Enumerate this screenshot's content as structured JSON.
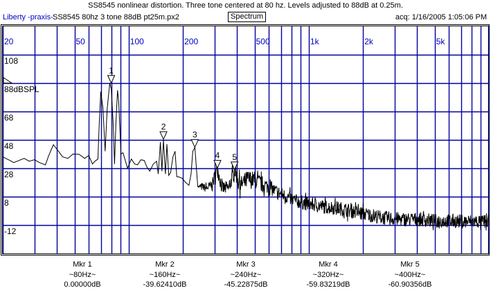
{
  "header": {
    "title": "SS8545 nonlinear distortion. Three tone centered at 80 hz. Levels adjusted to 88dB at 0.25m.",
    "brand": "Liberty -praxis-",
    "file": "SS8545 80hz 3 tone 88dB pt25m.px2",
    "mode": "Spectrum",
    "acq": "acq: 1/16/2005 1:05:06 PM"
  },
  "colors": {
    "grid": "#00009c",
    "trace": "#000000",
    "axis_text": "#0000c0"
  },
  "chart_data": {
    "type": "line",
    "title": "Spectrum",
    "xscale": "log",
    "xlim": [
      20,
      10000
    ],
    "ylim": [
      -32,
      128
    ],
    "x_tick_labels": [
      {
        "v": 20,
        "t": "20"
      },
      {
        "v": 50,
        "t": "50"
      },
      {
        "v": 100,
        "t": "100"
      },
      {
        "v": 200,
        "t": "200"
      },
      {
        "v": 500,
        "t": "500"
      },
      {
        "v": 1000,
        "t": "1k"
      },
      {
        "v": 2000,
        "t": "2k"
      },
      {
        "v": 5000,
        "t": "5k"
      }
    ],
    "y_tick_labels": [
      {
        "v": 108,
        "t": "108"
      },
      {
        "v": 88,
        "t": "88dBSPL"
      },
      {
        "v": 68,
        "t": "68"
      },
      {
        "v": 48,
        "t": "48"
      },
      {
        "v": 28,
        "t": "28"
      },
      {
        "v": 8,
        "t": "8"
      },
      {
        "v": -12,
        "t": "-12"
      }
    ],
    "reference_level_db": 88,
    "grid": true,
    "series": [
      {
        "name": "SPL",
        "points_f_db_spread": [
          [
            20,
            36,
            0
          ],
          [
            21.9,
            33.5,
            0
          ],
          [
            23,
            32,
            0
          ],
          [
            26.3,
            35,
            0
          ],
          [
            28,
            33,
            0
          ],
          [
            30,
            34,
            0
          ],
          [
            32,
            32,
            0
          ],
          [
            34.5,
            30.4,
            0
          ],
          [
            36,
            37,
            0
          ],
          [
            38.2,
            44.6,
            0
          ],
          [
            40.8,
            40,
            0
          ],
          [
            43,
            36,
            0
          ],
          [
            46,
            35,
            0
          ],
          [
            49,
            38,
            0
          ],
          [
            53,
            37.8,
            0
          ],
          [
            57,
            35,
            0
          ],
          [
            60,
            37,
            0
          ],
          [
            63,
            31,
            0
          ],
          [
            65,
            33,
            0
          ],
          [
            67.5,
            34.5,
            0
          ],
          [
            68.5,
            57,
            0
          ],
          [
            70,
            82,
            0
          ],
          [
            72,
            70,
            0
          ],
          [
            74,
            40,
            0
          ],
          [
            76,
            70,
            0
          ],
          [
            78.5,
            88,
            0
          ],
          [
            80,
            84,
            0
          ],
          [
            82,
            60,
            0
          ],
          [
            83.5,
            31,
            0
          ],
          [
            85,
            60,
            0
          ],
          [
            86.7,
            83,
            0
          ],
          [
            88,
            75,
            0
          ],
          [
            90.6,
            38,
            0
          ],
          [
            93,
            39,
            0
          ],
          [
            95,
            35,
            0
          ],
          [
            98.6,
            28,
            0
          ],
          [
            103.5,
            34.5,
            0
          ],
          [
            108,
            31,
            0
          ],
          [
            112,
            30.5,
            0
          ],
          [
            117,
            34,
            0
          ],
          [
            122,
            33.5,
            0
          ],
          [
            126,
            29,
            0
          ],
          [
            131,
            26,
            0
          ],
          [
            137,
            31,
            0
          ],
          [
            143,
            33,
            0
          ],
          [
            146,
            24,
            0
          ],
          [
            150,
            46.5,
            0
          ],
          [
            153,
            26,
            0
          ],
          [
            156,
            48,
            0
          ],
          [
            160,
            24,
            0
          ],
          [
            163,
            45,
            0
          ],
          [
            167,
            23,
            0
          ],
          [
            171,
            25,
            0
          ],
          [
            176,
            36,
            0
          ],
          [
            181,
            40,
            0
          ],
          [
            185,
            22,
            0
          ],
          [
            189,
            22,
            0
          ],
          [
            198,
            21,
            0
          ],
          [
            207,
            18,
            0
          ],
          [
            216,
            16,
            0
          ],
          [
            222,
            24,
            0
          ],
          [
            227,
            40,
            0
          ],
          [
            233,
            42.7,
            0
          ],
          [
            237,
            30,
            0
          ],
          [
            242,
            15,
            0
          ],
          [
            255,
            15,
            3
          ],
          [
            270,
            14,
            3
          ],
          [
            290,
            16,
            4
          ],
          [
            311,
            28,
            6
          ],
          [
            330,
            14,
            5
          ],
          [
            360,
            14,
            5
          ],
          [
            387,
            27,
            6
          ],
          [
            416,
            16,
            6
          ],
          [
            458,
            20,
            7
          ],
          [
            500,
            20,
            6
          ],
          [
            545,
            17,
            6
          ],
          [
            600,
            15,
            5
          ],
          [
            650,
            12,
            5
          ],
          [
            750,
            8,
            5
          ],
          [
            845,
            5,
            5
          ],
          [
            1000,
            3,
            5
          ],
          [
            1200,
            1,
            5
          ],
          [
            1450,
            0,
            5
          ],
          [
            1708,
            -2,
            5
          ],
          [
            2200,
            -5,
            5
          ],
          [
            2650,
            -7,
            5
          ],
          [
            3300,
            -8,
            5
          ],
          [
            4110,
            -8,
            5
          ],
          [
            5000,
            -9,
            5
          ],
          [
            5840,
            -9,
            5
          ],
          [
            7500,
            -9.5,
            5
          ],
          [
            9480,
            -9.5,
            5
          ],
          [
            10000,
            -9.5,
            5
          ]
        ]
      }
    ],
    "markers": [
      {
        "id": "1",
        "label": "Mkr 1",
        "freq_text": "~80Hz~",
        "value_text": "0.00000dB",
        "f": 80,
        "db": 88
      },
      {
        "id": "2",
        "label": "Mkr 2",
        "freq_text": "~160Hz~",
        "value_text": "-39.62410dB",
        "f": 156,
        "db": 48.4
      },
      {
        "id": "3",
        "label": "Mkr 3",
        "freq_text": "~240Hz~",
        "value_text": "-45.22875dB",
        "f": 233,
        "db": 42.8
      },
      {
        "id": "4",
        "label": "Mkr 4",
        "freq_text": "~320Hz~",
        "value_text": "-59.83219dB",
        "f": 311,
        "db": 28.2
      },
      {
        "id": "5",
        "label": "Mkr 5",
        "freq_text": "~400Hz~",
        "value_text": "-60.90356dB",
        "f": 387,
        "db": 27.1
      }
    ]
  }
}
